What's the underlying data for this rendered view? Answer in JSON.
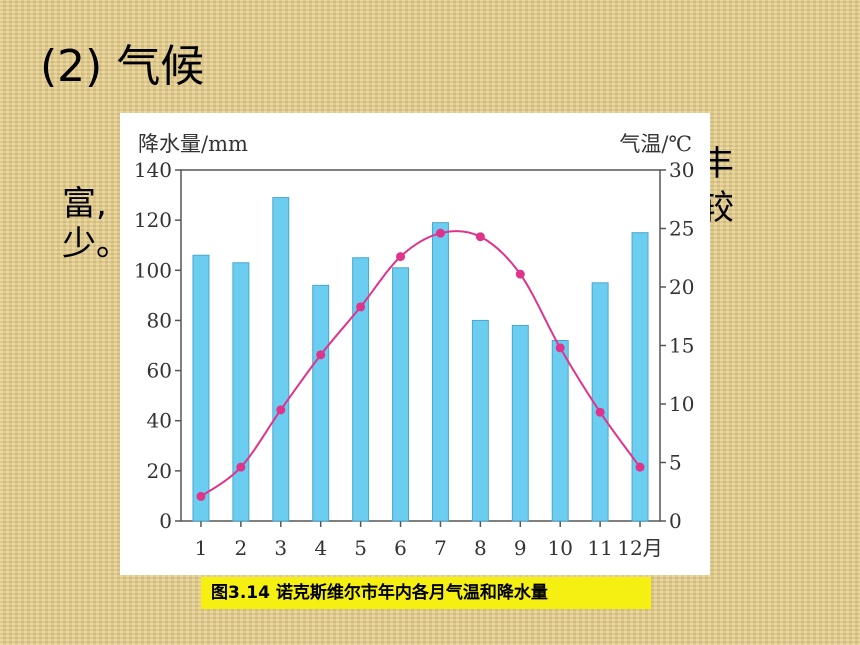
{
  "slide": {
    "title": "(2) 气候",
    "text_fragment_1": "丰",
    "text_fragment_2": "富,",
    "text_fragment_3": "较",
    "text_fragment_4": "少。"
  },
  "caption": "图3.14 诺克斯维尔市年内各月气温和降水量",
  "chart_data": {
    "type": "bar+line",
    "categories": [
      "1",
      "2",
      "3",
      "4",
      "5",
      "6",
      "7",
      "8",
      "9",
      "10",
      "11",
      "12月"
    ],
    "series": [
      {
        "name": "降水量",
        "type": "bar",
        "axis": "left",
        "values": [
          106,
          103,
          129,
          94,
          105,
          101,
          119,
          80,
          78,
          72,
          95,
          115
        ]
      },
      {
        "name": "气温",
        "type": "line",
        "axis": "right",
        "values": [
          2.1,
          4.6,
          9.5,
          14.2,
          18.3,
          22.6,
          24.6,
          24.3,
          21.1,
          14.8,
          9.3,
          4.6
        ]
      }
    ],
    "y_left_label": "降水量/mm",
    "y_right_label": "气温/℃",
    "y_left_ticks": [
      "0",
      "20",
      "40",
      "60",
      "80",
      "100",
      "120",
      "140"
    ],
    "y_right_ticks": [
      "0",
      "5",
      "10",
      "15",
      "20",
      "25",
      "30"
    ],
    "ylim_left": [
      0,
      140
    ],
    "ylim_right": [
      0,
      30
    ],
    "colors": {
      "bar": "#6bcdf0",
      "bar_edge": "#4aa7cf",
      "line": "#e0338c",
      "axis": "#555555"
    }
  }
}
